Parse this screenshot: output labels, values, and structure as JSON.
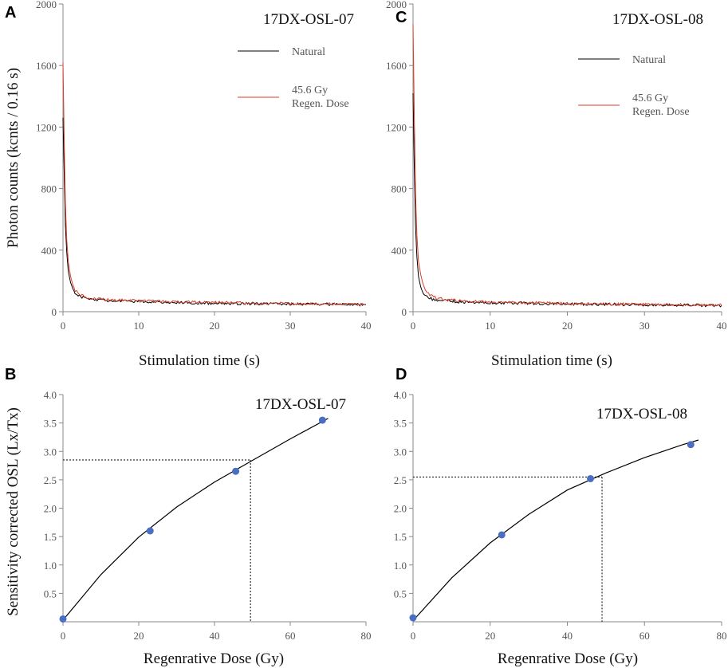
{
  "figure": {
    "y_label_top": "Photon counts (kcnts / 0.16 s)",
    "y_label_bottom": "Sensitivity corrected OSL (Lx/Tx)"
  },
  "chart_data": [
    {
      "panel": "A",
      "type": "line",
      "sample": "17DX-OSL-07",
      "xlabel": "Stimulation time (s)",
      "ylabel": "Photon counts (kcnts / 0.16 s)",
      "xlim": [
        0,
        40
      ],
      "ylim": [
        0,
        2000
      ],
      "xticks": [
        "0",
        "10",
        "20",
        "30",
        "40"
      ],
      "yticks": [
        "0",
        "400",
        "800",
        "1200",
        "1600",
        "2000"
      ],
      "series": [
        {
          "name": "Natural",
          "color": "#000000",
          "x": [
            0,
            0.16,
            0.32,
            0.5,
            0.7,
            1.0,
            1.3,
            1.6,
            2.0,
            2.5,
            3,
            4,
            5,
            7,
            10,
            15,
            20,
            25,
            30,
            35,
            40
          ],
          "y": [
            1260,
            900,
            560,
            380,
            260,
            190,
            150,
            120,
            105,
            95,
            88,
            80,
            75,
            70,
            65,
            60,
            55,
            52,
            50,
            48,
            45
          ]
        },
        {
          "name": "45.6 Gy Regen. Dose",
          "color": "#d9402b",
          "x": [
            0,
            0.16,
            0.32,
            0.5,
            0.7,
            1.0,
            1.3,
            1.6,
            2.0,
            2.5,
            3,
            4,
            5,
            7,
            10,
            15,
            20,
            25,
            30,
            35,
            40
          ],
          "y": [
            1620,
            1120,
            700,
            460,
            320,
            230,
            175,
            140,
            120,
            105,
            95,
            85,
            80,
            75,
            70,
            65,
            60,
            55,
            52,
            50,
            48
          ]
        }
      ]
    },
    {
      "panel": "C",
      "type": "line",
      "sample": "17DX-OSL-08",
      "xlabel": "Stimulation time (s)",
      "ylabel": "",
      "xlim": [
        0,
        40
      ],
      "ylim": [
        0,
        2000
      ],
      "xticks": [
        "0",
        "10",
        "20",
        "30",
        "40"
      ],
      "yticks": [
        "0",
        "400",
        "800",
        "1200",
        "1600",
        "2000"
      ],
      "series": [
        {
          "name": "Natural",
          "color": "#000000",
          "x": [
            0,
            0.16,
            0.32,
            0.5,
            0.7,
            1.0,
            1.3,
            1.6,
            2.0,
            2.5,
            3,
            4,
            5,
            7,
            10,
            15,
            20,
            25,
            30,
            35,
            40
          ],
          "y": [
            1420,
            950,
            560,
            360,
            230,
            160,
            120,
            100,
            90,
            82,
            78,
            72,
            68,
            62,
            58,
            55,
            50,
            48,
            45,
            43,
            40
          ]
        },
        {
          "name": "45.6 Gy Regen. Dose",
          "color": "#d9402b",
          "x": [
            0,
            0.16,
            0.32,
            0.5,
            0.7,
            1.0,
            1.3,
            1.6,
            2.0,
            2.5,
            3,
            4,
            5,
            7,
            10,
            15,
            20,
            25,
            30,
            35,
            40
          ],
          "y": [
            1870,
            1300,
            780,
            500,
            330,
            240,
            180,
            140,
            115,
            100,
            90,
            80,
            75,
            68,
            62,
            58,
            52,
            50,
            47,
            45,
            42
          ]
        }
      ]
    },
    {
      "panel": "B",
      "type": "scatter",
      "sample": "17DX-OSL-07",
      "xlabel": "Regenrative Dose (Gy)",
      "ylabel": "Sensitivity corrected OSL (Lx/Tx)",
      "xlim": [
        0,
        80
      ],
      "ylim": [
        0,
        4.0
      ],
      "xticks": [
        "0",
        "20",
        "40",
        "60",
        "80"
      ],
      "yticks": [
        "0.5",
        "1.0",
        "1.5",
        "2.0",
        "2.5",
        "3.0",
        "3.5",
        "4.0"
      ],
      "points": {
        "x": [
          0,
          23,
          45.6,
          68.5
        ],
        "y": [
          0.05,
          1.6,
          2.65,
          3.55
        ],
        "color": "#4a6fc2"
      },
      "fit": {
        "x": [
          0,
          10,
          20,
          30,
          40,
          50,
          60,
          70
        ],
        "y": [
          0.03,
          0.83,
          1.49,
          2.02,
          2.46,
          2.84,
          3.22,
          3.58
        ]
      },
      "natural": {
        "dose": 49.5,
        "signal": 2.85
      }
    },
    {
      "panel": "D",
      "type": "scatter",
      "sample": "17DX-OSL-08",
      "xlabel": "Regenrative Dose (Gy)",
      "ylabel": "",
      "xlim": [
        0,
        80
      ],
      "ylim": [
        0,
        4.0
      ],
      "xticks": [
        "0",
        "20",
        "40",
        "60",
        "80"
      ],
      "yticks": [
        "0.5",
        "1.0",
        "1.5",
        "2.0",
        "2.5",
        "3.0",
        "3.5",
        "4.0"
      ],
      "points": {
        "x": [
          0,
          23,
          46,
          72
        ],
        "y": [
          0.07,
          1.53,
          2.52,
          3.12
        ],
        "color": "#4a6fc2"
      },
      "fit": {
        "x": [
          0,
          10,
          20,
          30,
          40,
          50,
          60,
          70,
          74
        ],
        "y": [
          0.02,
          0.77,
          1.39,
          1.89,
          2.32,
          2.62,
          2.89,
          3.12,
          3.2
        ]
      },
      "natural": {
        "dose": 49,
        "signal": 2.55
      }
    }
  ]
}
